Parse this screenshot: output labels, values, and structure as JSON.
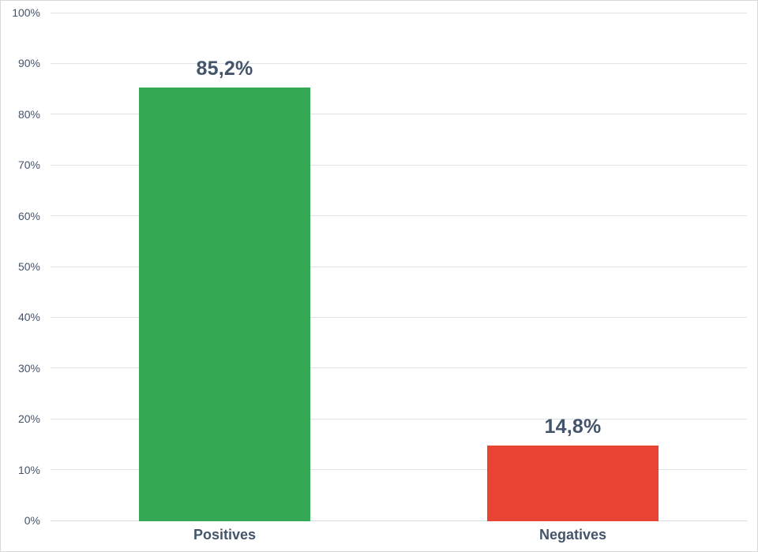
{
  "chart_data": {
    "type": "bar",
    "title": "",
    "categories": [
      "Positives",
      "Negatives"
    ],
    "values": [
      85.2,
      14.8
    ],
    "data_labels": [
      "85,2%",
      "14,8%"
    ],
    "bar_colors": [
      "#34a853",
      "#e94334"
    ],
    "xlabel": "",
    "ylabel": "",
    "ylim": [
      0,
      100
    ],
    "ytick_step": 10,
    "ytick_labels": [
      "0%",
      "10%",
      "20%",
      "30%",
      "40%",
      "50%",
      "60%",
      "70%",
      "80%",
      "90%",
      "100%"
    ],
    "grid": true,
    "legend": false
  },
  "style": {
    "background": "#ffffff",
    "frame_border_color": "#d9d9d9",
    "grid_color": "#dee3ea",
    "axis_color": "#d8dde5",
    "tick_text_color": "#44546a",
    "data_label_color": "#44546a",
    "category_label_color": "#44546a"
  }
}
